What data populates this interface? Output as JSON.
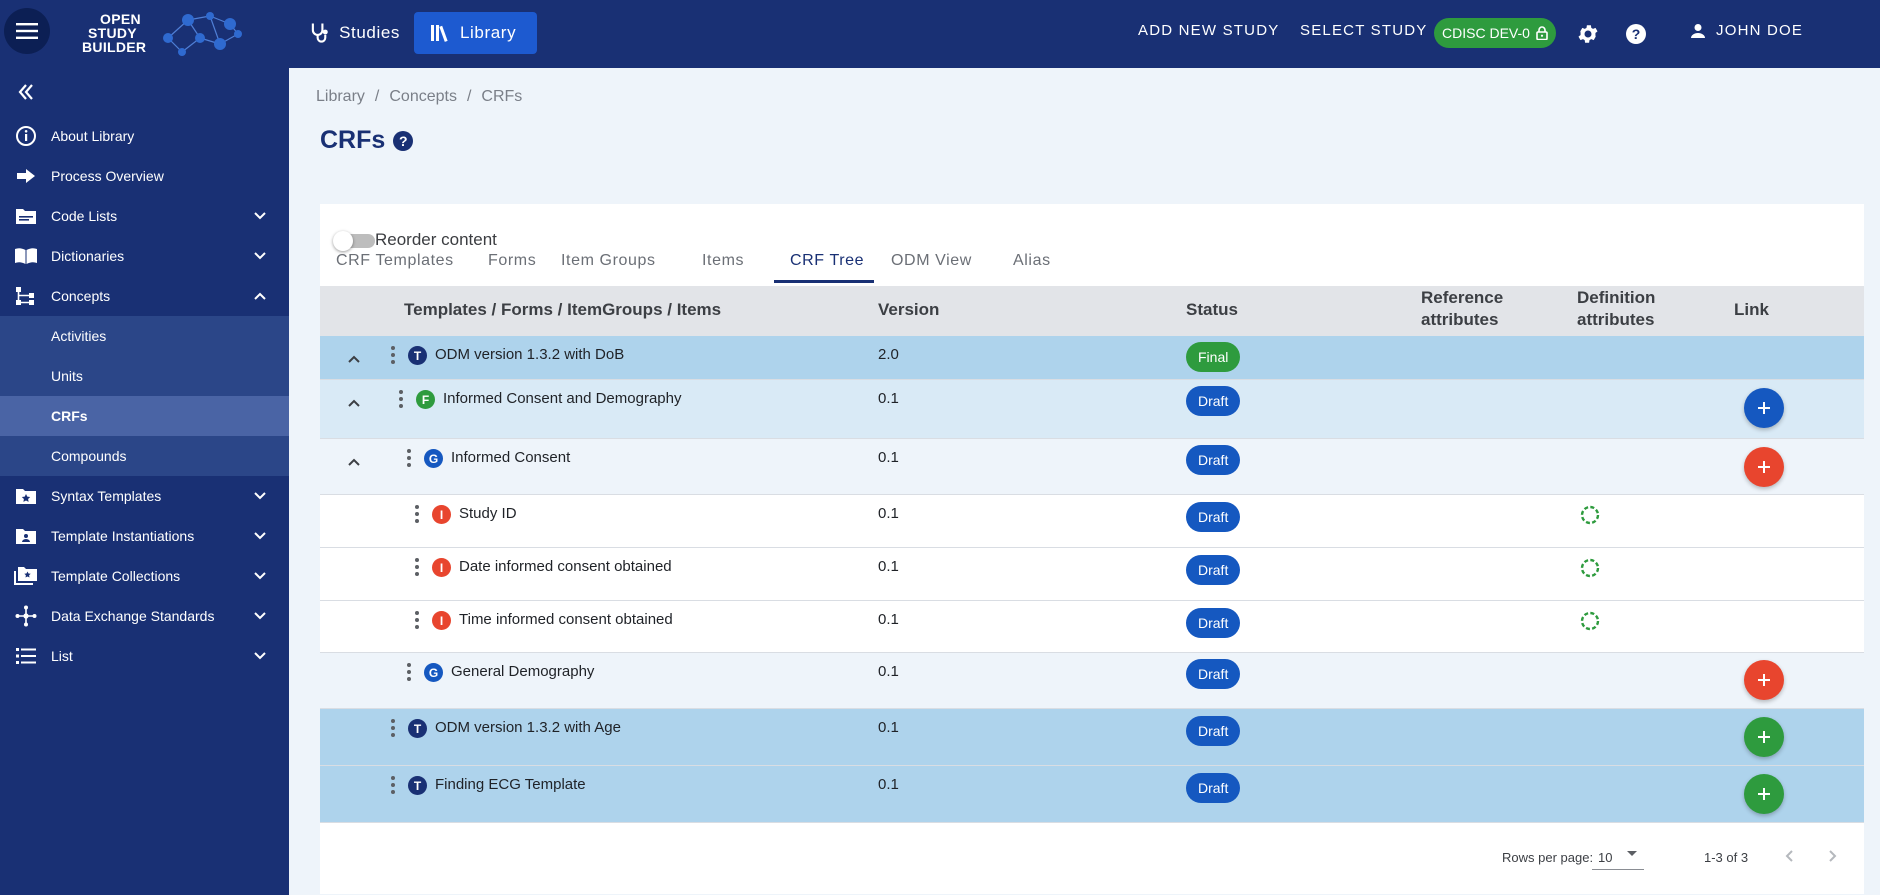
{
  "topbar": {
    "logo": {
      "line1": "OPEN",
      "line2": "STUDY",
      "line3": "BUILDER"
    },
    "nav": [
      {
        "label": "Studies"
      },
      {
        "label": "Library"
      }
    ],
    "add_new_study": "ADD NEW STUDY",
    "select_study": "SELECT STUDY",
    "environment_badge": "CDISC DEV-0",
    "user_name": "JOHN DOE"
  },
  "sidebar": {
    "items": [
      {
        "label": "About Library",
        "icon": "info-icon"
      },
      {
        "label": "Process Overview",
        "icon": "arrow-right-icon"
      },
      {
        "label": "Code Lists",
        "icon": "folder-icon"
      },
      {
        "label": "Dictionaries",
        "icon": "book-icon"
      },
      {
        "label": "Concepts",
        "icon": "hierarchy-icon"
      },
      {
        "label": "Activities"
      },
      {
        "label": "Units"
      },
      {
        "label": "CRFs"
      },
      {
        "label": "Compounds"
      },
      {
        "label": "Syntax Templates",
        "icon": "folder-star-icon"
      },
      {
        "label": "Template Instantiations",
        "icon": "folder-user-icon"
      },
      {
        "label": "Template Collections",
        "icon": "folders-icon"
      },
      {
        "label": "Data Exchange Standards",
        "icon": "network-icon"
      },
      {
        "label": "List",
        "icon": "list-icon"
      }
    ]
  },
  "breadcrumb": {
    "items": [
      "Library",
      "Concepts",
      "CRFs"
    ],
    "separator": "/"
  },
  "page": {
    "title": "CRFs"
  },
  "tabs": [
    "CRF Templates",
    "Forms",
    "Item Groups",
    "Items",
    "CRF Tree",
    "ODM View",
    "Alias"
  ],
  "reorder": {
    "label": "Reorder content",
    "enabled": false
  },
  "table": {
    "headers": {
      "name": "Templates / Forms / ItemGroups / Items",
      "version": "Version",
      "status": "Status",
      "reference_line1": "Reference",
      "reference_line2": "attributes",
      "definition_line1": "Definition",
      "definition_line2": "attributes",
      "link": "Link"
    },
    "rows": [
      {
        "type": "T",
        "name": "ODM version 1.3.2 with DoB",
        "version": "2.0",
        "status": "Final"
      },
      {
        "type": "F",
        "name": "Informed Consent and Demography",
        "version": "0.1",
        "status": "Draft"
      },
      {
        "type": "G",
        "name": "Informed Consent",
        "version": "0.1",
        "status": "Draft"
      },
      {
        "type": "I",
        "name": "Study ID",
        "version": "0.1",
        "status": "Draft"
      },
      {
        "type": "I",
        "name": "Date informed consent obtained",
        "version": "0.1",
        "status": "Draft"
      },
      {
        "type": "I",
        "name": "Time informed consent obtained",
        "version": "0.1",
        "status": "Draft"
      },
      {
        "type": "G",
        "name": "General Demography",
        "version": "0.1",
        "status": "Draft"
      },
      {
        "type": "T",
        "name": "ODM version 1.3.2 with Age",
        "version": "0.1",
        "status": "Draft"
      },
      {
        "type": "T",
        "name": "Finding ECG Template",
        "version": "0.1",
        "status": "Draft"
      }
    ]
  },
  "pagination": {
    "rows_per_page_label": "Rows per page:",
    "rows_per_page_value": "10",
    "range": "1-3 of 3"
  },
  "colors": {
    "brand_navy": "#193074",
    "library_tab": "#1d5ad0",
    "final_green": "#2e9b3e",
    "draft_blue": "#1558c0",
    "add_red": "#e8452e"
  }
}
